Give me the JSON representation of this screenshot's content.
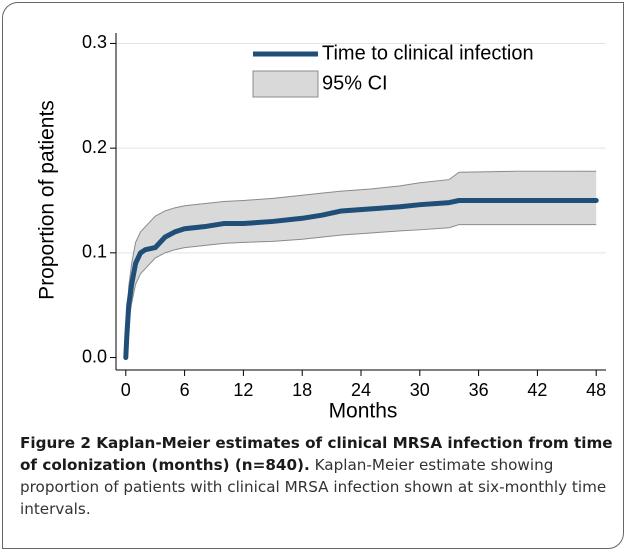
{
  "chart_data": {
    "type": "line",
    "x_label": "Months",
    "y_label": "Proportion of patients",
    "x": [
      0,
      0.1,
      0.3,
      0.6,
      1,
      1.5,
      2,
      3,
      4,
      5,
      6,
      8,
      10,
      12,
      15,
      18,
      20,
      22,
      25,
      28,
      30,
      33,
      34,
      40,
      48
    ],
    "series": [
      {
        "name": "Time to clinical infection",
        "color": "#1f4e79",
        "values": [
          0,
          0.02,
          0.05,
          0.07,
          0.09,
          0.1,
          0.103,
          0.105,
          0.115,
          0.12,
          0.123,
          0.125,
          0.128,
          0.128,
          0.13,
          0.133,
          0.136,
          0.14,
          0.142,
          0.144,
          0.146,
          0.148,
          0.15,
          0.15,
          0.15
        ]
      }
    ],
    "band": {
      "name": "95% CI",
      "color": "#d9d9d9",
      "lower": [
        0,
        0.012,
        0.035,
        0.052,
        0.07,
        0.08,
        0.085,
        0.095,
        0.1,
        0.103,
        0.105,
        0.107,
        0.109,
        0.11,
        0.111,
        0.113,
        0.115,
        0.117,
        0.119,
        0.121,
        0.122,
        0.124,
        0.127,
        0.127,
        0.127
      ],
      "upper": [
        0,
        0.03,
        0.068,
        0.09,
        0.11,
        0.12,
        0.125,
        0.135,
        0.14,
        0.143,
        0.145,
        0.147,
        0.149,
        0.15,
        0.152,
        0.155,
        0.157,
        0.159,
        0.161,
        0.164,
        0.167,
        0.17,
        0.177,
        0.178,
        0.178
      ]
    },
    "xlim": [
      -1,
      49
    ],
    "ylim": [
      -0.01,
      0.31
    ],
    "xticks": [
      0,
      6,
      12,
      18,
      24,
      30,
      36,
      42,
      48
    ],
    "yticks": [
      {
        "value": 0,
        "label": "0.0"
      },
      0.1,
      0.2,
      0.3
    ],
    "grid": true,
    "legend": "top"
  },
  "caption": {
    "title": "Figure 2 Kaplan-Meier estimates of clinical MRSA infection from time of colonization (months) (n=840).",
    "text": "Kaplan-Meier estimate showing proportion of patients with clinical MRSA infection shown at six-monthly time intervals."
  }
}
